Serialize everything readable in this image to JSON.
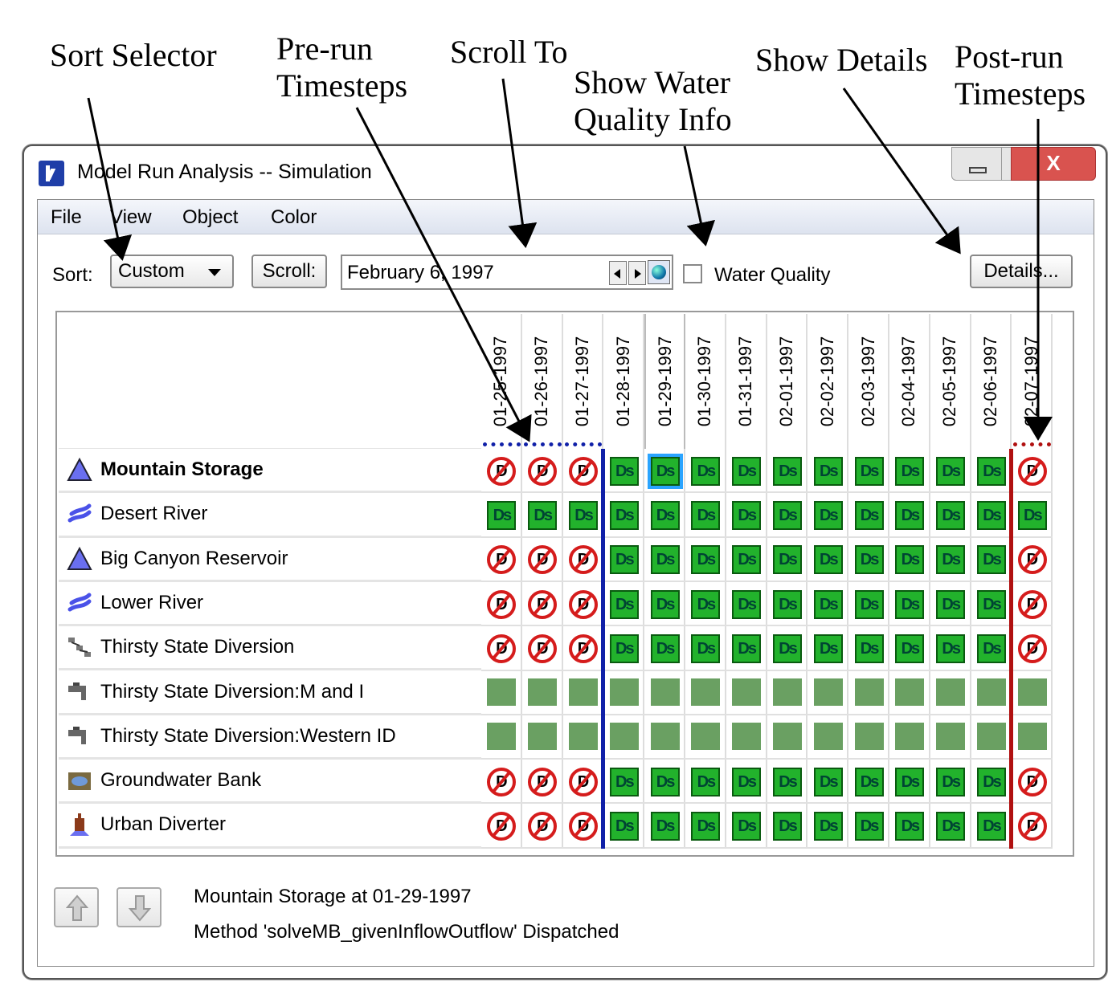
{
  "callouts": {
    "sort_selector": "Sort Selector",
    "prerun_1": "Pre-run",
    "prerun_2": "Timesteps",
    "scroll_to": "Scroll To",
    "water_1": "Show Water",
    "water_2": "Quality Info",
    "show_details": "Show Details",
    "postrun_1": "Post-run",
    "postrun_2": "Timesteps"
  },
  "window": {
    "title": "Model Run Analysis -- Simulation",
    "close_glyph": "X"
  },
  "menu": [
    "File",
    "View",
    "Object",
    "Color"
  ],
  "toolbar": {
    "sort_label": "Sort:",
    "sort_value": "Custom",
    "scroll_button": "Scroll:",
    "date_value": "February 6, 1997",
    "water_quality_label": "Water Quality",
    "details_button": "Details..."
  },
  "dates": [
    "01-25-1997",
    "01-26-1997",
    "01-27-1997",
    "01-28-1997",
    "01-29-1997",
    "01-30-1997",
    "01-31-1997",
    "02-01-1997",
    "02-02-1997",
    "02-03-1997",
    "02-04-1997",
    "02-05-1997",
    "02-06-1997",
    "02-07-1997"
  ],
  "rows": [
    {
      "label": "Mountain Storage",
      "icon": "reservoir-icon",
      "bold": true,
      "cells": [
        "nd",
        "nd",
        "nd",
        "ds",
        "ds-sel",
        "ds",
        "ds",
        "ds",
        "ds",
        "ds",
        "ds",
        "ds",
        "ds",
        "nd"
      ]
    },
    {
      "label": "Desert River",
      "icon": "river-icon",
      "cells": [
        "ds",
        "ds",
        "ds",
        "ds",
        "ds",
        "ds",
        "ds",
        "ds",
        "ds",
        "ds",
        "ds",
        "ds",
        "ds",
        "ds"
      ]
    },
    {
      "label": "Big Canyon Reservoir",
      "icon": "reservoir-icon",
      "cells": [
        "nd",
        "nd",
        "nd",
        "ds",
        "ds",
        "ds",
        "ds",
        "ds",
        "ds",
        "ds",
        "ds",
        "ds",
        "ds",
        "nd"
      ]
    },
    {
      "label": "Lower River",
      "icon": "river-icon",
      "cells": [
        "nd",
        "nd",
        "nd",
        "ds",
        "ds",
        "ds",
        "ds",
        "ds",
        "ds",
        "ds",
        "ds",
        "ds",
        "ds",
        "nd"
      ]
    },
    {
      "label": "Thirsty State Diversion",
      "icon": "diversion-icon",
      "cells": [
        "nd",
        "nd",
        "nd",
        "ds",
        "ds",
        "ds",
        "ds",
        "ds",
        "ds",
        "ds",
        "ds",
        "ds",
        "ds",
        "nd"
      ]
    },
    {
      "label": "Thirsty State Diversion:M and I",
      "icon": "faucet-icon",
      "cells": [
        "sq",
        "sq",
        "sq",
        "sq",
        "sq",
        "sq",
        "sq",
        "sq",
        "sq",
        "sq",
        "sq",
        "sq",
        "sq",
        "sq"
      ]
    },
    {
      "label": "Thirsty State Diversion:Western ID",
      "icon": "faucet-icon",
      "cells": [
        "sq",
        "sq",
        "sq",
        "sq",
        "sq",
        "sq",
        "sq",
        "sq",
        "sq",
        "sq",
        "sq",
        "sq",
        "sq",
        "sq"
      ]
    },
    {
      "label": "Groundwater Bank",
      "icon": "groundwater-icon",
      "cells": [
        "nd",
        "nd",
        "nd",
        "ds",
        "ds",
        "ds",
        "ds",
        "ds",
        "ds",
        "ds",
        "ds",
        "ds",
        "ds",
        "nd"
      ]
    },
    {
      "label": "Urban Diverter",
      "icon": "urban-diverter-icon",
      "cells": [
        "nd",
        "nd",
        "nd",
        "ds",
        "ds",
        "ds",
        "ds",
        "ds",
        "ds",
        "ds",
        "ds",
        "ds",
        "ds",
        "nd"
      ]
    }
  ],
  "cell_text": {
    "ds": "Ds"
  },
  "status": {
    "line1": "Mountain Storage at 01-29-1997",
    "line2": "Method 'solveMB_givenInflowOutflow' Dispatched"
  },
  "colors": {
    "dispatched": "#22b22c",
    "not_dispatched": "#d51c1c",
    "prerun_marker": "#1020a8",
    "postrun_marker": "#b01010",
    "selection": "#2aa4ff"
  }
}
